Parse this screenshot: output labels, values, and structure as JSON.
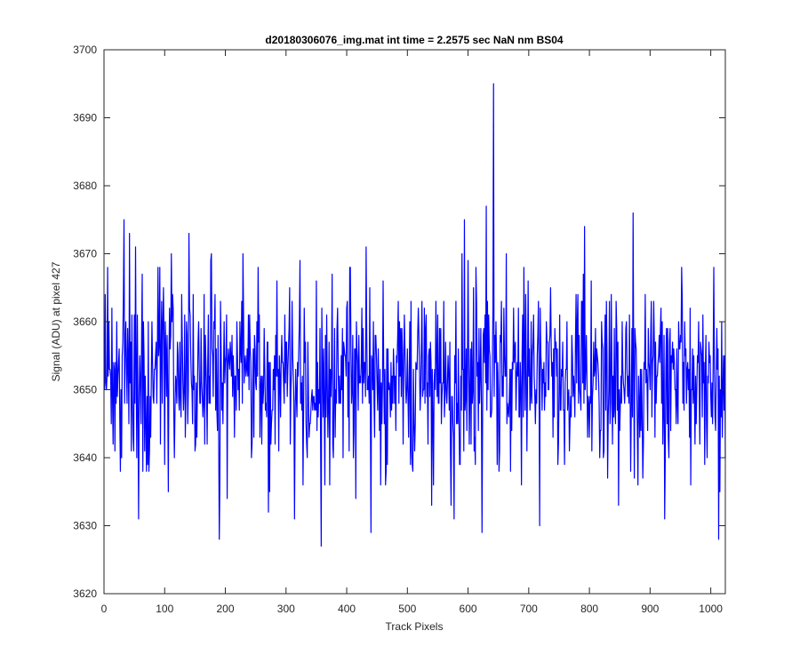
{
  "chart_data": {
    "type": "line",
    "title": "d20180306076_img.mat int time = 2.2575 sec  NaN nm BS04",
    "xlabel": "Track Pixels",
    "ylabel": "Signal (ADU) at pixel 427",
    "xlim": [
      0,
      1024
    ],
    "ylim": [
      3620,
      3700
    ],
    "xticks": [
      0,
      100,
      200,
      300,
      400,
      500,
      600,
      700,
      800,
      900,
      1000
    ],
    "yticks": [
      3620,
      3630,
      3640,
      3650,
      3660,
      3670,
      3680,
      3690,
      3700
    ],
    "grid": false,
    "legend": "none",
    "series": [
      {
        "color": "#0000ff",
        "n_points": 1024,
        "x_start": 1,
        "mean": 3652,
        "std": 6.5,
        "min": 3627,
        "max": 3695,
        "points": [
          [
            1,
            3650
          ],
          [
            6,
            3668
          ],
          [
            12,
            3645
          ],
          [
            15,
            3642
          ],
          [
            21,
            3660
          ],
          [
            33,
            3675
          ],
          [
            42,
            3673
          ],
          [
            48,
            3643
          ],
          [
            52,
            3671
          ],
          [
            57,
            3631
          ],
          [
            63,
            3667
          ],
          [
            70,
            3638
          ],
          [
            89,
            3668
          ],
          [
            101,
            3660
          ],
          [
            106,
            3635
          ],
          [
            114,
            3662
          ],
          [
            140,
            3673
          ],
          [
            150,
            3641
          ],
          [
            176,
            3669
          ],
          [
            190,
            3628
          ],
          [
            203,
            3634
          ],
          [
            227,
            3663
          ],
          [
            254,
            3668
          ],
          [
            273,
            3635
          ],
          [
            306,
            3665
          ],
          [
            314,
            3631
          ],
          [
            323,
            3669
          ],
          [
            328,
            3636
          ],
          [
            350,
            3666
          ],
          [
            358,
            3627
          ],
          [
            376,
            3667
          ],
          [
            405,
            3668
          ],
          [
            415,
            3634
          ],
          [
            432,
            3671
          ],
          [
            440,
            3629
          ],
          [
            464,
            3636
          ],
          [
            485,
            3663
          ],
          [
            508,
            3639
          ],
          [
            540,
            3633
          ],
          [
            570,
            3657
          ],
          [
            577,
            3631
          ],
          [
            590,
            3670
          ],
          [
            600,
            3669
          ],
          [
            612,
            3639
          ],
          [
            623,
            3629
          ],
          [
            630,
            3677
          ],
          [
            642,
            3695
          ],
          [
            648,
            3639
          ],
          [
            663,
            3670
          ],
          [
            704,
            3660
          ],
          [
            718,
            3630
          ],
          [
            735,
            3658
          ],
          [
            748,
            3639
          ],
          [
            767,
            3641
          ],
          [
            790,
            3667
          ],
          [
            800,
            3643
          ],
          [
            830,
            3637
          ],
          [
            848,
            3633
          ],
          [
            872,
            3676
          ],
          [
            880,
            3636
          ],
          [
            906,
            3663
          ],
          [
            931,
            3640
          ],
          [
            952,
            3668
          ],
          [
            966,
            3662
          ],
          [
            990,
            3639
          ],
          [
            1005,
            3668
          ],
          [
            1013,
            3628
          ],
          [
            1018,
            3660
          ],
          [
            1024,
            3640
          ]
        ]
      }
    ]
  }
}
